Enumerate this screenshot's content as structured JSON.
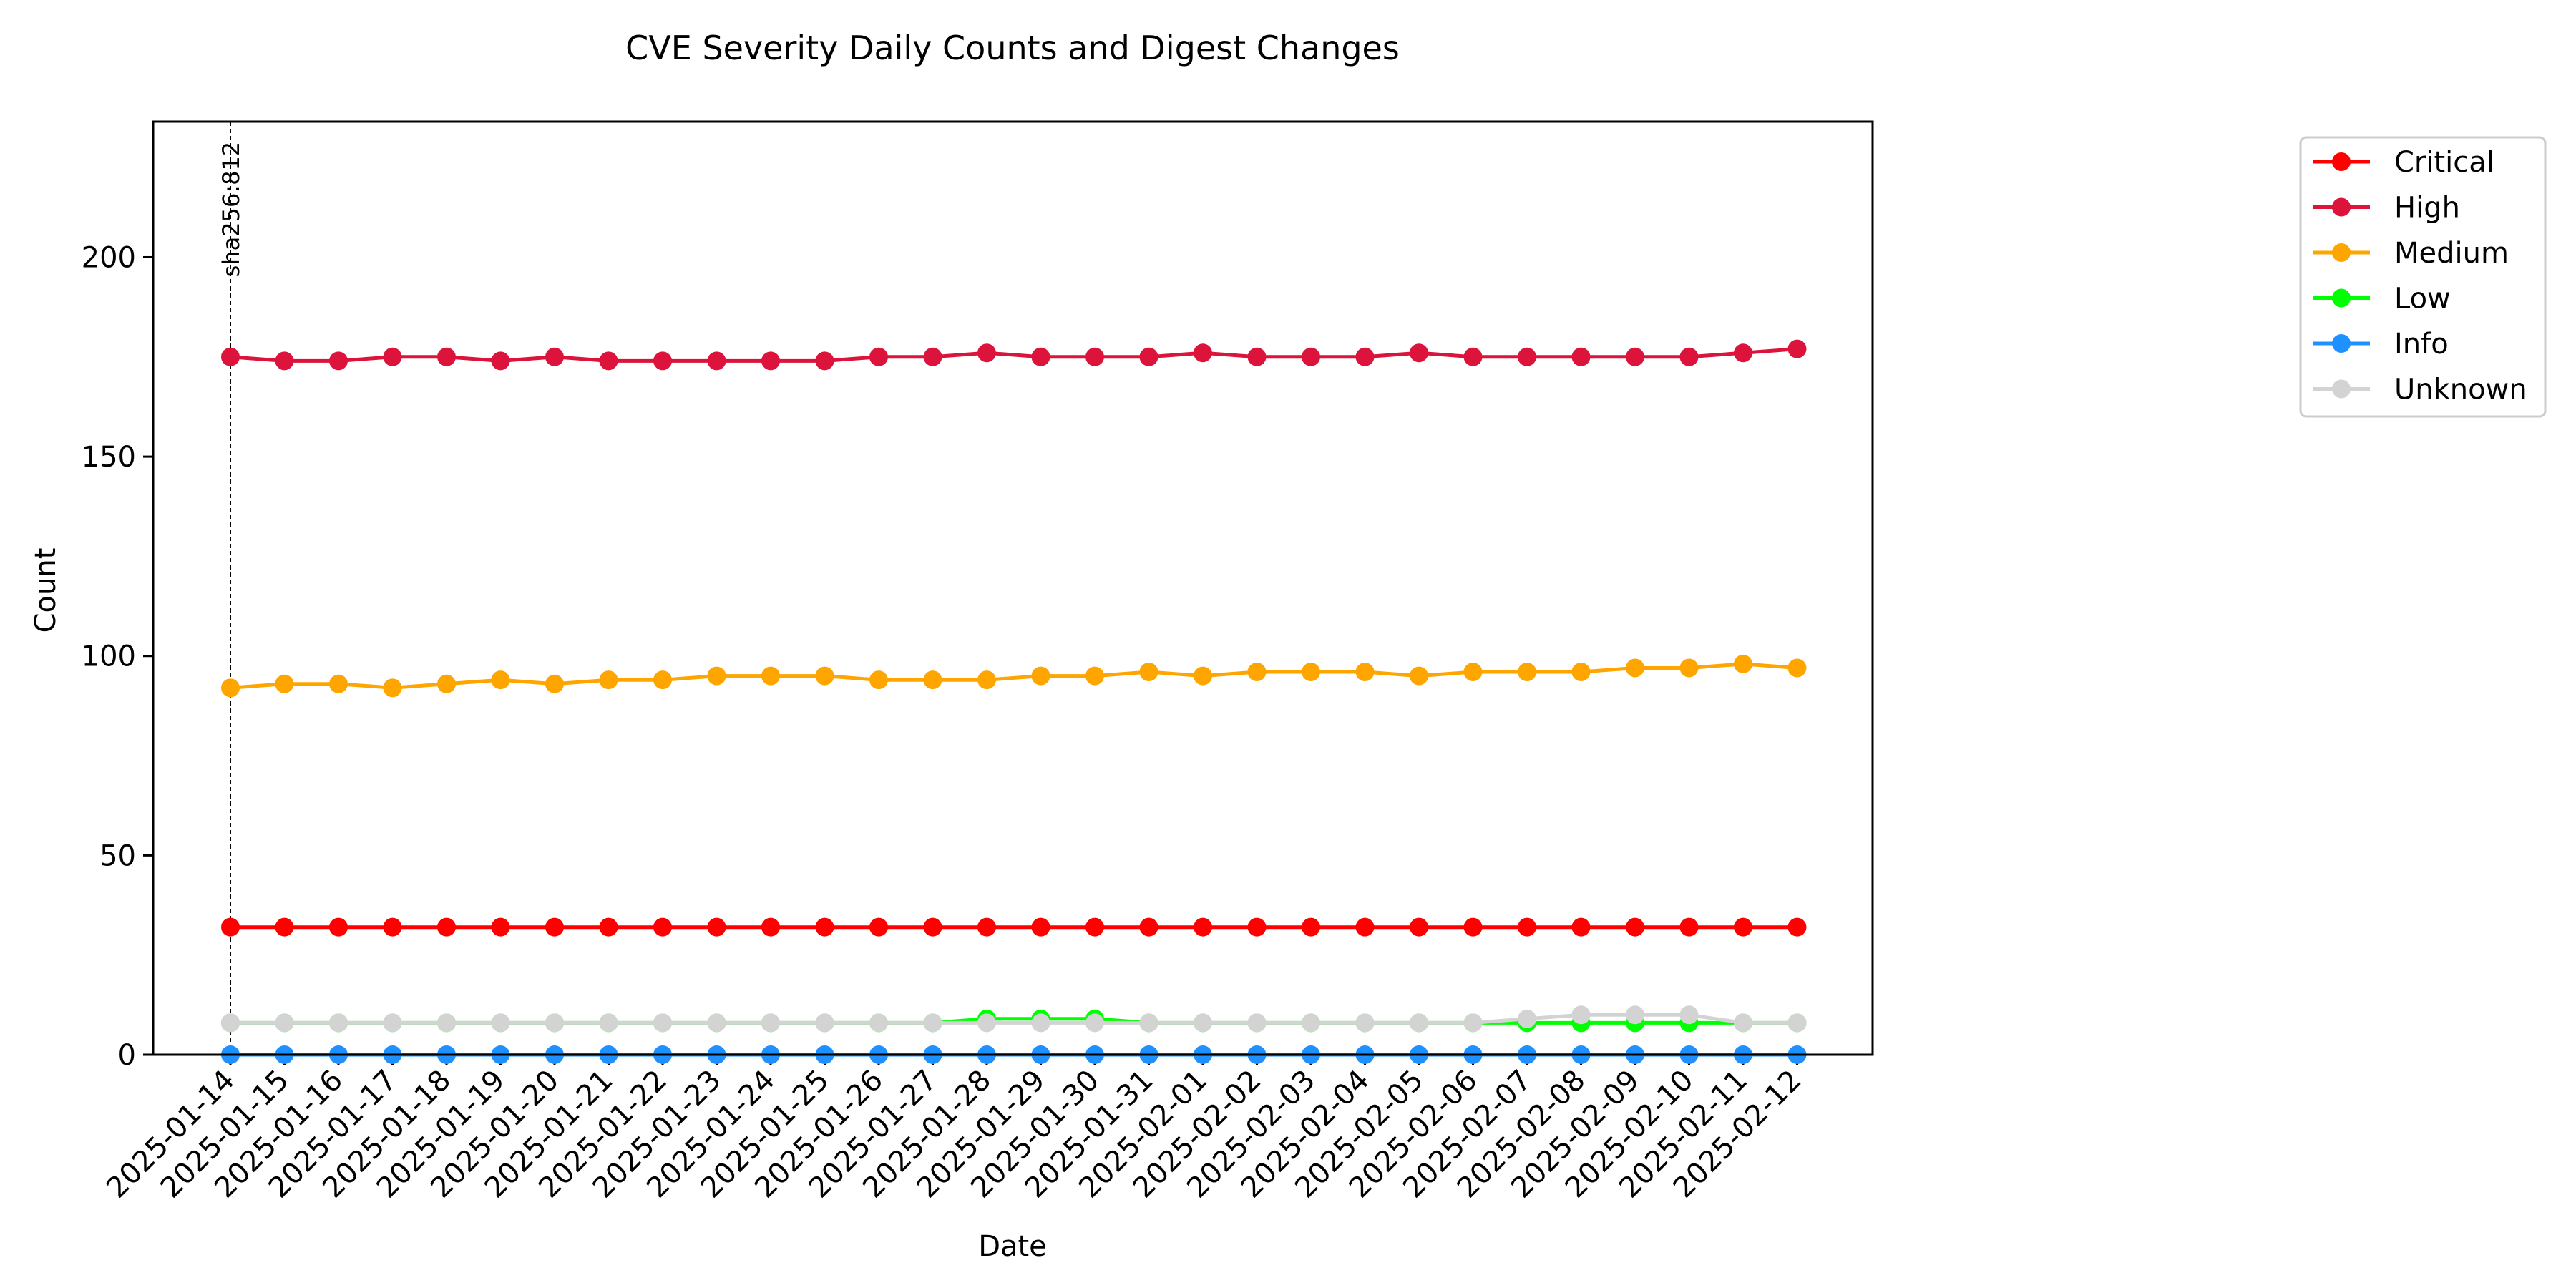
{
  "chart_data": {
    "type": "line",
    "title": "CVE Severity Daily Counts and Digest Changes",
    "xlabel": "Date",
    "ylabel": "Count",
    "ylim": [
      0,
      234
    ],
    "yticks": [
      0,
      50,
      100,
      150,
      200
    ],
    "grid": false,
    "legend_position": "right, outside plot",
    "x": [
      "2025-01-14",
      "2025-01-15",
      "2025-01-16",
      "2025-01-17",
      "2025-01-18",
      "2025-01-19",
      "2025-01-20",
      "2025-01-21",
      "2025-01-22",
      "2025-01-23",
      "2025-01-24",
      "2025-01-25",
      "2025-01-26",
      "2025-01-27",
      "2025-01-28",
      "2025-01-29",
      "2025-01-30",
      "2025-01-31",
      "2025-02-01",
      "2025-02-02",
      "2025-02-03",
      "2025-02-04",
      "2025-02-05",
      "2025-02-06",
      "2025-02-07",
      "2025-02-08",
      "2025-02-09",
      "2025-02-10",
      "2025-02-11",
      "2025-02-12"
    ],
    "series": [
      {
        "name": "Critical",
        "color": "#ff0000",
        "values": [
          32,
          32,
          32,
          32,
          32,
          32,
          32,
          32,
          32,
          32,
          32,
          32,
          32,
          32,
          32,
          32,
          32,
          32,
          32,
          32,
          32,
          32,
          32,
          32,
          32,
          32,
          32,
          32,
          32,
          32
        ]
      },
      {
        "name": "High",
        "color": "#dc143c",
        "values": [
          175,
          174,
          174,
          175,
          175,
          174,
          175,
          174,
          174,
          174,
          174,
          174,
          175,
          175,
          176,
          175,
          175,
          175,
          176,
          175,
          175,
          175,
          176,
          175,
          175,
          175,
          175,
          175,
          176,
          177
        ]
      },
      {
        "name": "Medium",
        "color": "#ffa500",
        "values": [
          92,
          93,
          93,
          92,
          93,
          94,
          93,
          94,
          94,
          95,
          95,
          95,
          94,
          94,
          94,
          95,
          95,
          96,
          95,
          96,
          96,
          96,
          95,
          96,
          96,
          96,
          97,
          97,
          98,
          97
        ]
      },
      {
        "name": "Low",
        "color": "#00ff00",
        "values": [
          8,
          8,
          8,
          8,
          8,
          8,
          8,
          8,
          8,
          8,
          8,
          8,
          8,
          8,
          9,
          9,
          9,
          8,
          8,
          8,
          8,
          8,
          8,
          8,
          8,
          8,
          8,
          8,
          8,
          8
        ]
      },
      {
        "name": "Info",
        "color": "#1e90ff",
        "values": [
          0,
          0,
          0,
          0,
          0,
          0,
          0,
          0,
          0,
          0,
          0,
          0,
          0,
          0,
          0,
          0,
          0,
          0,
          0,
          0,
          0,
          0,
          0,
          0,
          0,
          0,
          0,
          0,
          0,
          0
        ]
      },
      {
        "name": "Unknown",
        "color": "#d3d3d3",
        "values": [
          8,
          8,
          8,
          8,
          8,
          8,
          8,
          8,
          8,
          8,
          8,
          8,
          8,
          8,
          8,
          8,
          8,
          8,
          8,
          8,
          8,
          8,
          8,
          8,
          9,
          10,
          10,
          10,
          8,
          8
        ]
      }
    ],
    "annotations": [
      {
        "x": "2025-01-14",
        "label": "sha256:812",
        "style": "dashed vertical line"
      }
    ]
  }
}
